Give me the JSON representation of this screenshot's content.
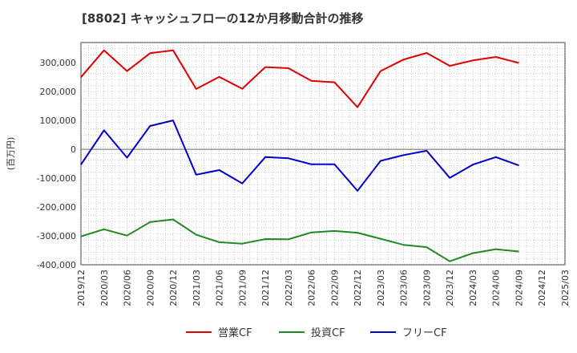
{
  "chart_data": {
    "type": "line",
    "title": "[8802]  キャッシュフローの12か月移動合計の推移",
    "ylabel": "(百万円)",
    "xlabel": "",
    "ylim": [
      -400000,
      370000
    ],
    "yticks": [
      -400000,
      -300000,
      -200000,
      -100000,
      0,
      100000,
      200000,
      300000
    ],
    "ytick_labels": [
      "-400,000",
      "-300,000",
      "-200,000",
      "-100,000",
      "0",
      "100,000",
      "200,000",
      "300,000"
    ],
    "categories": [
      "2019/12",
      "2020/03",
      "2020/06",
      "2020/09",
      "2020/12",
      "2021/03",
      "2021/06",
      "2021/09",
      "2021/12",
      "2022/03",
      "2022/06",
      "2022/09",
      "2022/12",
      "2023/03",
      "2023/06",
      "2023/09",
      "2023/12",
      "2024/03",
      "2024/06",
      "2024/09",
      "2024/12",
      "2025/03"
    ],
    "grid": true,
    "legend_position": "bottom",
    "series": [
      {
        "name": "営業CF",
        "color": "#dd0000",
        "values": [
          250000,
          343000,
          271000,
          333000,
          343000,
          209000,
          251000,
          210000,
          285000,
          281000,
          237000,
          232000,
          146000,
          271000,
          311000,
          334000,
          289000,
          308000,
          320000,
          299000,
          null,
          null
        ]
      },
      {
        "name": "投資CF",
        "color": "#228822",
        "values": [
          -302000,
          -277000,
          -299000,
          -252000,
          -243000,
          -296000,
          -322000,
          -327000,
          -311000,
          -312000,
          -288000,
          -283000,
          -289000,
          -310000,
          -331000,
          -339000,
          -388000,
          -360000,
          -346000,
          -354000,
          null,
          null
        ]
      },
      {
        "name": "フリーCF",
        "color": "#0000cc",
        "values": [
          -53000,
          66000,
          -29000,
          81000,
          100000,
          -88000,
          -72000,
          -118000,
          -27000,
          -31000,
          -52000,
          -52000,
          -144000,
          -40000,
          -20000,
          -5000,
          -99000,
          -53000,
          -27000,
          -56000,
          null,
          null
        ]
      }
    ]
  }
}
